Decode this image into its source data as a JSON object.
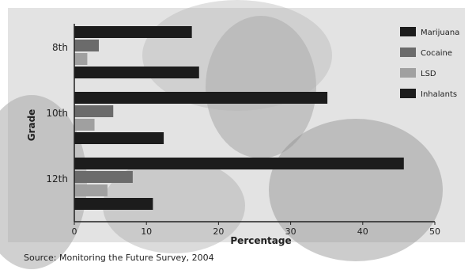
{
  "chart_data": {
    "type": "bar",
    "orientation": "horizontal",
    "categories": [
      "8th",
      "10th",
      "12th"
    ],
    "series": [
      {
        "name": "Marijuana",
        "values": [
          16.3,
          35.1,
          45.7
        ],
        "color": "#1c1c1c"
      },
      {
        "name": "Cocaine",
        "values": [
          3.4,
          5.4,
          8.1
        ],
        "color": "#6b6b6b"
      },
      {
        "name": "LSD",
        "values": [
          1.8,
          2.8,
          4.6
        ],
        "color": "#a0a0a0"
      },
      {
        "name": "Inhalants",
        "values": [
          17.3,
          12.4,
          10.9
        ],
        "color": "#1c1c1c"
      }
    ],
    "xlabel": "Percentage",
    "ylabel": "Grade",
    "xlim": [
      0,
      50
    ],
    "xticks": [
      "0",
      "10",
      "20",
      "30",
      "40",
      "50"
    ],
    "grid": false,
    "legend_position": "top-right"
  },
  "source": "Source: Monitoring the Future Survey, 2004",
  "colors": {
    "background": "#e3e3e3",
    "photo_dark": "#8e8e8e",
    "photo_mid": "#bcbcbc"
  }
}
